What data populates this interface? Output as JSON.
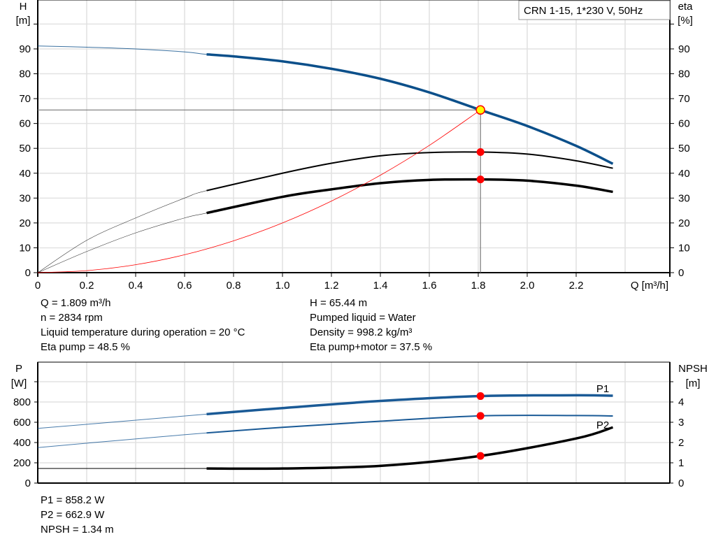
{
  "legend_box": {
    "label": "CRN 1-15, 1*230 V, 50Hz"
  },
  "info_top": {
    "left": [
      "Q = 1.809 m³/h",
      "n = 2834 rpm",
      "Liquid temperature during operation = 20 °C",
      "Eta pump = 48.5 %"
    ],
    "right": [
      "H = 65.44 m",
      "Pumped liquid = Water",
      "Density = 998.2 kg/m³",
      "Eta pump+motor = 37.5 %"
    ]
  },
  "info_bottom": [
    "P1 = 858.2 W",
    "P2 = 662.9 W",
    "NPSH = 1.34 m"
  ],
  "colors": {
    "head": "#0b4f8a",
    "power": "#1a5a96",
    "efficiency": "#000000",
    "system": "#ff0000",
    "duty_point": "#ff0000",
    "duty_fill_head": "#ffff00",
    "grid": "#d0d0d0"
  },
  "chart_data": [
    {
      "type": "line",
      "xlabel": "Q [m³/h]",
      "ylabel_left": [
        "H",
        "[m]"
      ],
      "ylabel_right": [
        "eta",
        "[%]"
      ],
      "xlim": [
        0,
        2.58
      ],
      "ylim": [
        0,
        110
      ],
      "x_ticks": [
        "0",
        "0.2",
        "0.4",
        "0.6",
        "0.8",
        "1.0",
        "1.2",
        "1.4",
        "1.6",
        "1.8",
        "2.0",
        "2.2"
      ],
      "y_ticks": [
        "0",
        "10",
        "20",
        "30",
        "40",
        "50",
        "60",
        "70",
        "80",
        "90"
      ],
      "grid": true,
      "operating_range_start": 0.69,
      "duty_point": {
        "Q": 1.809,
        "H": 65.44,
        "eta_pump": 48.5,
        "eta_total": 37.5
      },
      "series": [
        {
          "key": "head",
          "axis": "left",
          "x": [
            0,
            0.2,
            0.4,
            0.6,
            0.69,
            0.8,
            1.0,
            1.2,
            1.4,
            1.6,
            1.809,
            2.0,
            2.2,
            2.35
          ],
          "y": [
            91.2,
            90.7,
            90.0,
            88.8,
            87.8,
            87.0,
            85.0,
            82.0,
            78.0,
            72.5,
            65.44,
            59.0,
            51.0,
            43.8
          ]
        },
        {
          "key": "eta_pump",
          "axis": "right",
          "x": [
            0,
            0.2,
            0.4,
            0.6,
            0.69,
            1.0,
            1.2,
            1.4,
            1.6,
            1.809,
            2.0,
            2.2,
            2.35
          ],
          "y": [
            0,
            13,
            22,
            30,
            33,
            40,
            44,
            47,
            48.3,
            48.5,
            47.7,
            45,
            42
          ]
        },
        {
          "key": "eta_total",
          "axis": "right",
          "x": [
            0,
            0.2,
            0.4,
            0.6,
            0.69,
            1.0,
            1.2,
            1.4,
            1.6,
            1.809,
            2.0,
            2.2,
            2.35
          ],
          "y": [
            0,
            8.5,
            16,
            22,
            24,
            30.5,
            33.5,
            36,
            37.3,
            37.5,
            37,
            35,
            32.5
          ]
        },
        {
          "key": "system",
          "axis": "left",
          "x": [
            0,
            0.2,
            0.4,
            0.6,
            0.8,
            1.0,
            1.2,
            1.4,
            1.6,
            1.809
          ],
          "y": [
            0,
            0.8,
            3.2,
            7.2,
            12.8,
            20.0,
            28.8,
            39.2,
            51.2,
            65.44
          ]
        }
      ]
    },
    {
      "type": "line",
      "ylabel_left": [
        "P",
        "[W]"
      ],
      "ylabel_right": [
        "NPSH",
        "[m]"
      ],
      "xlim": [
        0,
        2.58
      ],
      "ylim": [
        0,
        1193
      ],
      "y_ticks": [
        "0",
        "200",
        "400",
        "600",
        "800"
      ],
      "y_ticks_right": [
        "0",
        "1",
        "2",
        "3",
        "4"
      ],
      "grid": true,
      "operating_range_start": 0.69,
      "duty_point": {
        "Q": 1.809,
        "P1": 858.2,
        "P2": 662.9,
        "NPSH": 1.34
      },
      "series": [
        {
          "key": "P1",
          "name": "P1",
          "axis": "left",
          "x": [
            0,
            0.3,
            0.69,
            1.0,
            1.4,
            1.809,
            2.2,
            2.35
          ],
          "y": [
            540,
            600,
            680,
            740,
            810,
            858.2,
            866,
            862
          ]
        },
        {
          "key": "P2",
          "name": "P2",
          "axis": "left",
          "x": [
            0,
            0.3,
            0.69,
            1.0,
            1.4,
            1.809,
            2.2,
            2.35
          ],
          "y": [
            350,
            415,
            495,
            550,
            610,
            662.9,
            666,
            662
          ]
        },
        {
          "key": "NPSH",
          "axis": "right",
          "x": [
            0,
            0.69,
            1.0,
            1.4,
            1.809,
            2.2,
            2.35
          ],
          "y": [
            0.72,
            0.72,
            0.72,
            0.85,
            1.34,
            2.2,
            2.75
          ]
        }
      ]
    }
  ]
}
